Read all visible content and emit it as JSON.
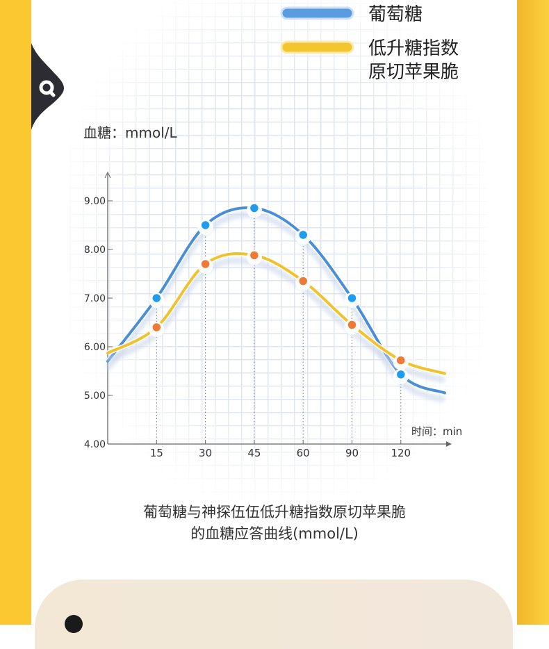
{
  "legend": {
    "series1": "葡萄糖",
    "series2_line1": "低升糖指数",
    "series2_line2": "原切苹果脆"
  },
  "caption": {
    "line1": "葡萄糖与神探伍伍低升糖指数原切苹果脆",
    "line2": "的血糖应答曲线(mmol/L)"
  },
  "icons": {
    "search_tab": "search-icon"
  },
  "chart_data": {
    "type": "line",
    "ylabel": "血糖：mmol/L",
    "xlabel": "时间：min",
    "categories": [
      "15",
      "30",
      "45",
      "60",
      "90",
      "120"
    ],
    "yticks": [
      "4.00",
      "5.00",
      "6.00",
      "7.00",
      "8.00",
      "9.00"
    ],
    "ylim": [
      4,
      9
    ],
    "grid": true,
    "legend_position": "top-right",
    "series": [
      {
        "name": "葡萄糖",
        "color": "#4a8fd6",
        "marker_color": "#1e9cf0",
        "values": [
          7.0,
          8.5,
          8.85,
          8.3,
          7.0,
          5.43
        ]
      },
      {
        "name": "低升糖指数原切苹果脆",
        "color": "#f2c12e",
        "marker_color": "#ee7a35",
        "values": [
          6.4,
          7.7,
          7.88,
          7.35,
          6.45,
          5.72
        ]
      }
    ]
  }
}
